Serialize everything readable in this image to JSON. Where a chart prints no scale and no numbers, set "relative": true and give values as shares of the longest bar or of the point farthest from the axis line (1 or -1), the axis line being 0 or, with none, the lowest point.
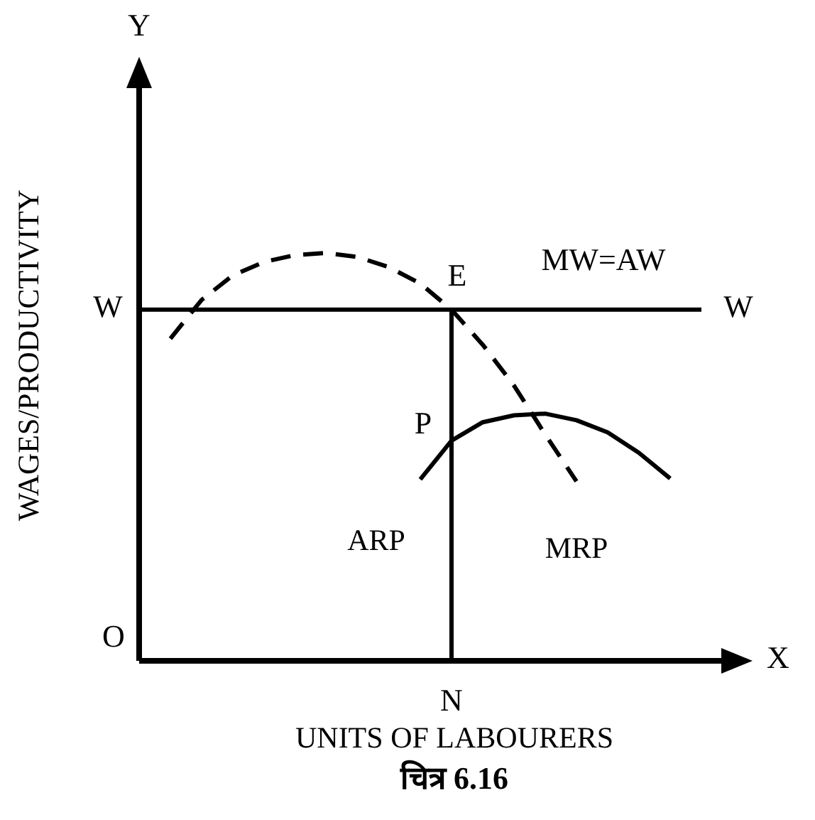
{
  "chart_data": {
    "type": "line",
    "relative": true,
    "title": "चित्र 6.16",
    "xlabel": "UNITS OF LABOURERS",
    "ylabel": "WAGES/PRODUCTIVITY",
    "categories": [
      null,
      null,
      null,
      null,
      null,
      null,
      null,
      null,
      null,
      null,
      null,
      null,
      null,
      null,
      null,
      null,
      null,
      null,
      null,
      null
    ],
    "series": [
      {
        "name": "MRP",
        "color": "#000000",
        "line_style": "dashed",
        "values": [
          null,
          0.79,
          0.885,
          0.945,
          0.978,
          0.995,
          1.0,
          0.99,
          0.965,
          0.925,
          0.861,
          0.775,
          0.675,
          0.555,
          0.44,
          null,
          null,
          null,
          null,
          null
        ]
      },
      {
        "name": "ARP",
        "color": "#000000",
        "line_style": "solid",
        "values": [
          null,
          null,
          null,
          null,
          null,
          null,
          null,
          null,
          null,
          0.445,
          0.54,
          0.585,
          0.602,
          0.606,
          0.59,
          0.56,
          0.51,
          0.447,
          null,
          null
        ]
      },
      {
        "color": "#000000",
        "line_style": "solid",
        "values": [
          0.861,
          0.861,
          0.861,
          0.861,
          0.861,
          0.861,
          0.861,
          0.861,
          0.861,
          0.861,
          0.861,
          0.861,
          0.861,
          0.861,
          0.861,
          0.861,
          0.861,
          0.861,
          0.861,
          null
        ]
      }
    ],
    "annotations": [
      "Y",
      "X",
      "O",
      "W",
      "W",
      "E",
      "P",
      "MW=AW",
      "N"
    ]
  }
}
